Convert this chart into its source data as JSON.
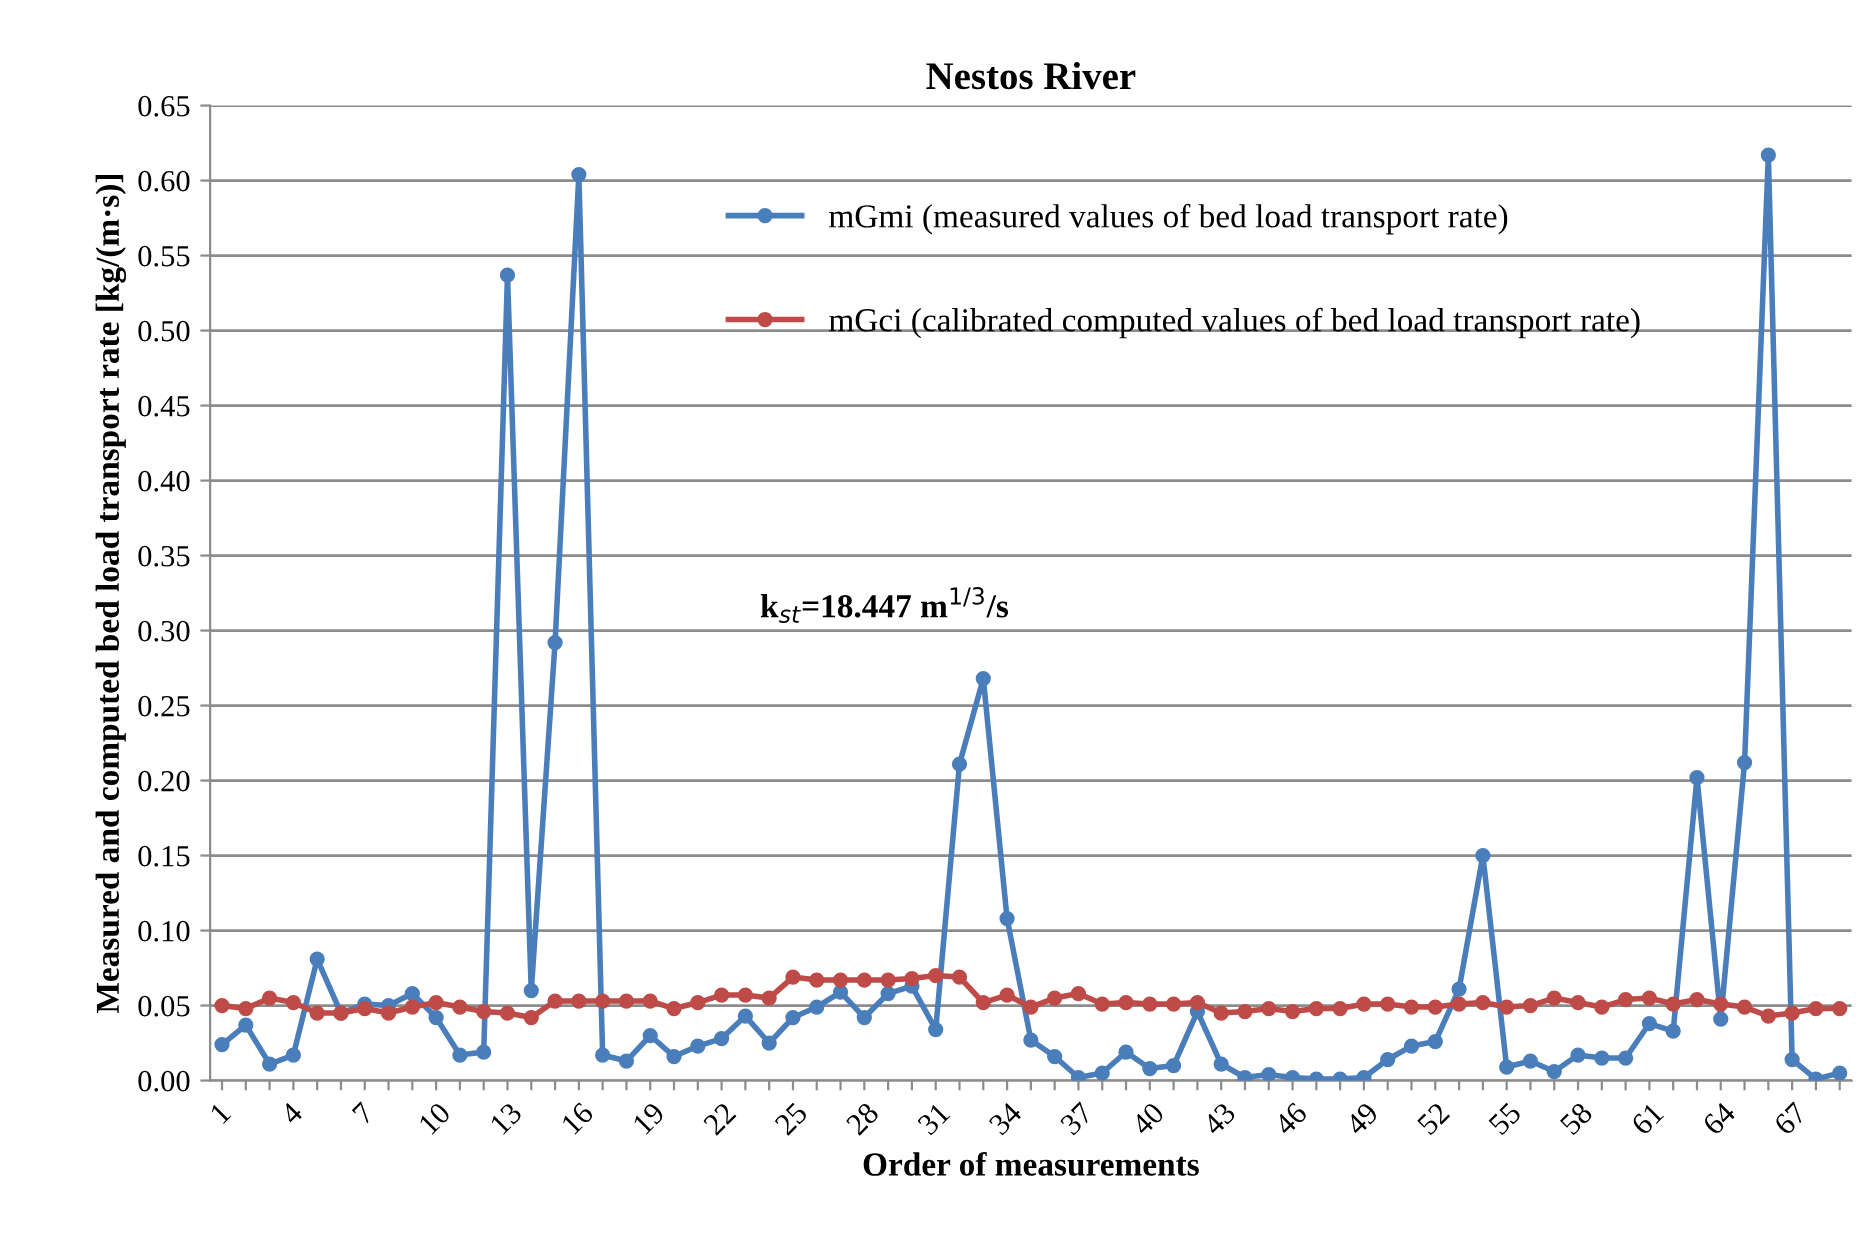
{
  "chart_data": {
    "type": "line",
    "title": "Nestos River",
    "xlabel": "Order of measurements",
    "ylabel": "Measured and computed bed load transport rate [kg/(m·s)]",
    "categories": [
      "1",
      null,
      null,
      "4",
      null,
      null,
      "7",
      null,
      null,
      "10",
      null,
      null,
      "13",
      null,
      null,
      "16",
      null,
      null,
      "19",
      null,
      null,
      "22",
      null,
      null,
      "25",
      null,
      null,
      "28",
      null,
      null,
      "31",
      null,
      null,
      "34",
      null,
      null,
      "37",
      null,
      null,
      "40",
      null,
      null,
      "43",
      null,
      null,
      "46",
      null,
      null,
      "49",
      null,
      null,
      "52",
      null,
      null,
      "55",
      null,
      null,
      "58",
      null,
      null,
      "61",
      null,
      null,
      "64",
      null,
      null,
      "67",
      null,
      null
    ],
    "series": [
      {
        "name": "mGmi (measured values of bed load transport rate)",
        "color": "#4a7ebb",
        "values": [
          0.024,
          0.037,
          0.011,
          0.017,
          0.081,
          0.045,
          0.051,
          0.05,
          0.058,
          0.042,
          0.017,
          0.019,
          0.537,
          0.06,
          0.292,
          0.604,
          0.017,
          0.013,
          0.03,
          0.016,
          0.023,
          0.028,
          0.043,
          0.025,
          0.042,
          0.049,
          0.059,
          0.042,
          0.058,
          0.063,
          0.034,
          0.211,
          0.268,
          0.108,
          0.027,
          0.016,
          0.002,
          0.005,
          0.019,
          0.008,
          0.01,
          0.046,
          0.011,
          0.002,
          0.004,
          0.002,
          0.001,
          0.001,
          0.002,
          0.014,
          0.023,
          0.026,
          0.061,
          0.15,
          0.009,
          0.013,
          0.006,
          0.017,
          0.015,
          0.015,
          0.038,
          0.033,
          0.202,
          0.041,
          0.212,
          0.617,
          0.014,
          0.001,
          0.005
        ]
      },
      {
        "name": "mGci (calibrated computed values of bed load transport rate)",
        "color": "#be4b48",
        "values": [
          0.05,
          0.048,
          0.055,
          0.052,
          0.045,
          0.045,
          0.048,
          0.045,
          0.049,
          0.052,
          0.049,
          0.046,
          0.045,
          0.042,
          0.053,
          0.053,
          0.053,
          0.053,
          0.053,
          0.048,
          0.052,
          0.057,
          0.057,
          0.055,
          0.069,
          0.067,
          0.067,
          0.067,
          0.067,
          0.068,
          0.07,
          0.069,
          0.052,
          0.057,
          0.049,
          0.055,
          0.058,
          0.051,
          0.052,
          0.051,
          0.051,
          0.052,
          0.045,
          0.046,
          0.048,
          0.046,
          0.048,
          0.048,
          0.051,
          0.051,
          0.049,
          0.049,
          0.051,
          0.052,
          0.049,
          0.05,
          0.055,
          0.052,
          0.049,
          0.054,
          0.055,
          0.051,
          0.054,
          0.051,
          0.049,
          0.043,
          0.045,
          0.048,
          0.048
        ]
      }
    ],
    "ylim": [
      0,
      0.65
    ],
    "yticks": [
      {
        "value": 0,
        "label": "0.00"
      },
      {
        "value": 0.05,
        "label": "0.05"
      },
      {
        "value": 0.1,
        "label": "0.10"
      },
      {
        "value": 0.15,
        "label": "0.15"
      },
      {
        "value": 0.2,
        "label": "0.20"
      },
      {
        "value": 0.25,
        "label": "0.25"
      },
      {
        "value": 0.3,
        "label": "0.30"
      },
      {
        "value": 0.35,
        "label": "0.35"
      },
      {
        "value": 0.4,
        "label": "0.40"
      },
      {
        "value": 0.45,
        "label": "0.45"
      },
      {
        "value": 0.5,
        "label": "0.50"
      },
      {
        "value": 0.55,
        "label": "0.55"
      },
      {
        "value": 0.6,
        "label": "0.60"
      },
      {
        "value": 0.65,
        "label": "0.65"
      }
    ],
    "grid": "y",
    "legend": "top right",
    "marker": "circle",
    "line_style": "solid",
    "annotations": [
      "k$_{st}$=18.447 m$^{1/3}$/s"
    ]
  }
}
